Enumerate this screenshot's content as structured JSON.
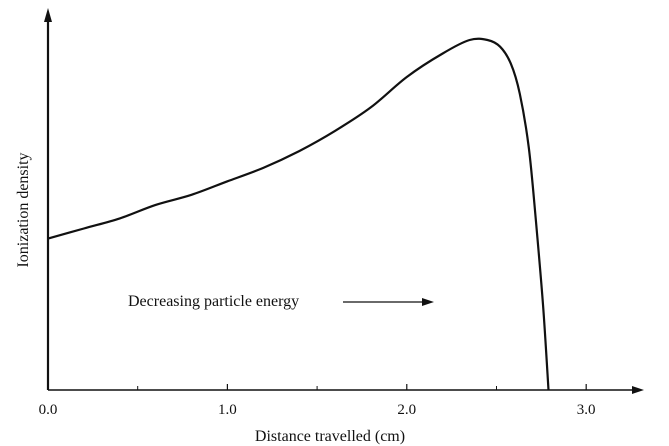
{
  "chart_data": {
    "type": "line",
    "title": "",
    "xlabel": "Distance travelled (cm)",
    "ylabel": "Ionization density",
    "xlim": [
      0,
      3.3
    ],
    "ylim": [
      0,
      1.0
    ],
    "xticks": [
      0.0,
      1.0,
      2.0,
      3.0
    ],
    "xtick_labels": [
      "0.0",
      "1.0",
      "2.0",
      "3.0"
    ],
    "y_tick_labels_shown": false,
    "grid": false,
    "annotation": "Decreasing particle energy",
    "series": [
      {
        "x": [
          0.0,
          0.2,
          0.4,
          0.6,
          0.8,
          1.0,
          1.2,
          1.4,
          1.6,
          1.8,
          2.0,
          2.2,
          2.35,
          2.45,
          2.52,
          2.58,
          2.63,
          2.68,
          2.72,
          2.76,
          2.79
        ],
        "values": [
          0.45,
          0.48,
          0.51,
          0.55,
          0.58,
          0.62,
          0.66,
          0.71,
          0.77,
          0.84,
          0.93,
          1.0,
          1.04,
          1.04,
          1.02,
          0.97,
          0.88,
          0.72,
          0.5,
          0.25,
          0.0
        ]
      }
    ],
    "colors": {
      "line": "#111111",
      "axis": "#111111"
    }
  }
}
